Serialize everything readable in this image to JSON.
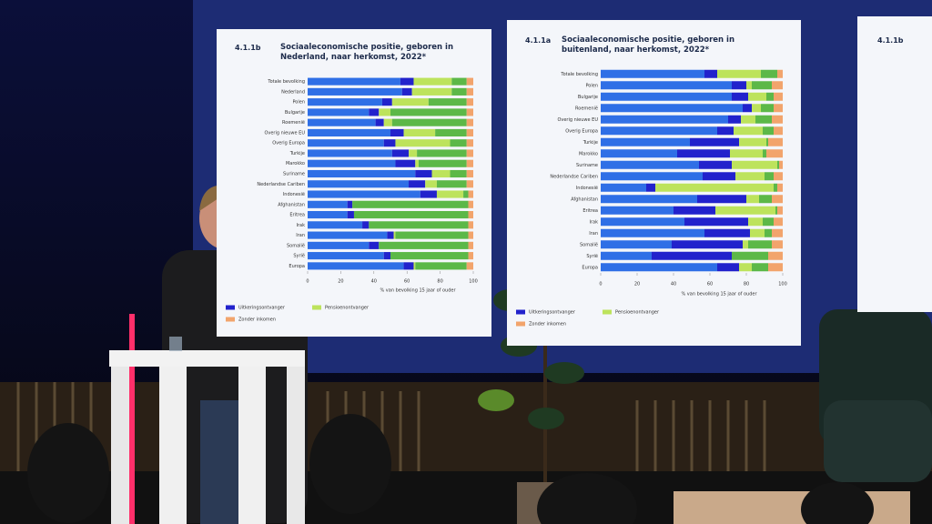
{
  "chart_data": [
    {
      "type": "bar",
      "orientation": "horizontal",
      "stacked": true,
      "number": "4.1.1b",
      "title": "Sociaaleconomische positie, geboren in Nederland, naar herkomst, 2022*",
      "categories": [
        "Totale bevolking",
        "Nederland",
        "Polen",
        "Bulgarije",
        "Roemenië",
        "Overig nieuwe EU",
        "Overig Europa",
        "Turkije",
        "Marokko",
        "Suriname",
        "Nederlandse Cariben",
        "Indonesië",
        "Afghanistan",
        "Eritrea",
        "Irak",
        "Iran",
        "Somalië",
        "Syrië",
        "Europa"
      ],
      "series": [
        {
          "color": "#2f6fe6",
          "values": [
            56,
            57,
            45,
            37,
            41,
            50,
            46,
            51,
            53,
            65,
            61,
            68,
            24,
            24,
            33,
            48,
            37,
            46,
            58
          ]
        },
        {
          "name": "Uitkeringsontvanger",
          "color": "#2222cc",
          "values": [
            8,
            6,
            6,
            6,
            5,
            8,
            7,
            10,
            12,
            10,
            10,
            10,
            3,
            4,
            4,
            4,
            6,
            4,
            6
          ]
        },
        {
          "name": "Pensioenontvanger",
          "color": "#bde35c",
          "values": [
            23,
            24,
            22,
            7,
            5,
            19,
            33,
            5,
            2,
            11,
            7,
            16,
            0,
            0,
            0,
            1,
            0,
            0,
            1
          ]
        },
        {
          "color": "#5cb848",
          "values": [
            9,
            9,
            23,
            46,
            45,
            19,
            10,
            30,
            29,
            10,
            18,
            3,
            70,
            69,
            60,
            44,
            54,
            47,
            31
          ]
        },
        {
          "name": "Zonder inkomen",
          "color": "#f2a46c",
          "values": [
            4,
            4,
            4,
            4,
            4,
            4,
            4,
            4,
            4,
            4,
            4,
            3,
            3,
            3,
            3,
            3,
            3,
            3,
            4
          ]
        }
      ],
      "xlim": [
        0,
        100
      ],
      "xticks": [
        0,
        20,
        40,
        60,
        80,
        100
      ],
      "xlabel": "% van bevolking 15 jaar of ouder"
    },
    {
      "type": "bar",
      "orientation": "horizontal",
      "stacked": true,
      "number": "4.1.1a",
      "title": "Sociaaleconomische positie, geboren in buitenland, naar herkomst, 2022*",
      "categories": [
        "Totale bevolking",
        "Polen",
        "Bulgarije",
        "Roemenië",
        "Overig nieuwe EU",
        "Overig Europa",
        "Turkije",
        "Marokko",
        "Suriname",
        "Nederlandse Cariben",
        "Indonesië",
        "Afghanistan",
        "Eritrea",
        "Irak",
        "Iran",
        "Somalië",
        "Syrië",
        "Europa"
      ],
      "series": [
        {
          "color": "#2f6fe6",
          "values": [
            57,
            72,
            72,
            78,
            70,
            64,
            49,
            42,
            54,
            56,
            25,
            53,
            40,
            46,
            57,
            39,
            28,
            64
          ]
        },
        {
          "name": "Uitkeringsontvanger",
          "color": "#2222cc",
          "values": [
            7,
            8,
            9,
            5,
            7,
            9,
            27,
            29,
            18,
            18,
            5,
            27,
            23,
            35,
            25,
            39,
            44,
            12
          ]
        },
        {
          "name": "Pensioenontvanger",
          "color": "#bde35c",
          "values": [
            24,
            3,
            10,
            5,
            8,
            16,
            15,
            18,
            25,
            16,
            65,
            7,
            33,
            8,
            8,
            3,
            0,
            7
          ]
        },
        {
          "color": "#5cb848",
          "values": [
            9,
            11,
            4,
            7,
            9,
            6,
            1,
            2,
            1,
            5,
            2,
            7,
            1,
            6,
            4,
            13,
            20,
            9
          ]
        },
        {
          "name": "Zonder inkomen",
          "color": "#f2a46c",
          "values": [
            3,
            6,
            5,
            5,
            6,
            5,
            8,
            9,
            2,
            5,
            3,
            6,
            3,
            5,
            6,
            6,
            8,
            8
          ]
        }
      ],
      "xlim": [
        0,
        100
      ],
      "xticks": [
        0,
        20,
        40,
        60,
        80,
        100
      ],
      "xlabel": "% van bevolking 15 jaar of ouder"
    }
  ],
  "third_slide": {
    "number": "4.1.1b"
  }
}
